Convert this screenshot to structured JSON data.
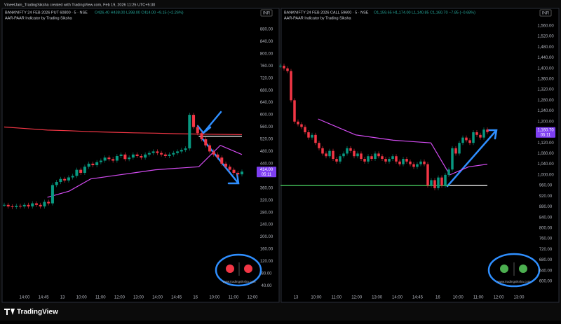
{
  "header": {
    "text": "VineetJain_TradingSiksha created with TradingView.com, Feb 19, 2026 11:25 UTC+5:30"
  },
  "footer": {
    "brand": "TradingView"
  },
  "panels": [
    {
      "title": "BANKNIFTY 24 FEB 2026 PUT 60800 · 5 · NSE",
      "ohlc": "O426.40 H438.00 L398.00 C414.00 +9.15 (+2.26%)",
      "indicator": "AAR-PAAR Indicator by Trading Siksha",
      "currency": "INR",
      "last_price": "414.00",
      "countdown": "05:11",
      "watermark": "www.tradingsiksha.com",
      "ylim": [
        18,
        944
      ],
      "yticks": [
        {
          "value": 40,
          "label": "40.00"
        },
        {
          "value": 80,
          "label": "80.00"
        },
        {
          "value": 120,
          "label": "120.00"
        },
        {
          "value": 160,
          "label": "160.00"
        },
        {
          "value": 200,
          "label": "200.00"
        },
        {
          "value": 240,
          "label": "240.00"
        },
        {
          "value": 280,
          "label": "280.00"
        },
        {
          "value": 320,
          "label": "320.00"
        },
        {
          "value": 360,
          "label": "360.00"
        },
        {
          "value": 400,
          "label": "400.00"
        },
        {
          "value": 440,
          "label": "440.00"
        },
        {
          "value": 480,
          "label": "480.00"
        },
        {
          "value": 520,
          "label": "520.00"
        },
        {
          "value": 560,
          "label": "560.00"
        },
        {
          "value": 600,
          "label": "600.00"
        },
        {
          "value": 640,
          "label": "640.00"
        },
        {
          "value": 680,
          "label": "680.00"
        },
        {
          "value": 720,
          "label": "720.00"
        },
        {
          "value": 760,
          "label": "760.00"
        },
        {
          "value": 800,
          "label": "800.00"
        },
        {
          "value": 840,
          "label": "840.00"
        },
        {
          "value": 880,
          "label": "880.00"
        }
      ],
      "xlabels": [
        "14:00",
        "14:45",
        "13",
        "10:00",
        "11:00",
        "12:00",
        "13:00",
        "14:00",
        "14:45",
        "16",
        "10:00",
        "11:00",
        "12:00"
      ],
      "closes": [
        305,
        300,
        298,
        302,
        300,
        305,
        300,
        310,
        305,
        300,
        315,
        310,
        370,
        380,
        390,
        385,
        395,
        400,
        420,
        410,
        430,
        440,
        435,
        445,
        450,
        460,
        455,
        450,
        465,
        470,
        455,
        460,
        470,
        465,
        460,
        470,
        475,
        480,
        475,
        470,
        465,
        470,
        475,
        480,
        485,
        490,
        600,
        560,
        540,
        520,
        500,
        480,
        470,
        460,
        440,
        430,
        420,
        410,
        405,
        414
      ],
      "lines": [
        {
          "color": "#f23645",
          "values": [
            560,
            555,
            550,
            548,
            545,
            543,
            541,
            540,
            538,
            537,
            536,
            535
          ]
        },
        {
          "color": "#d24bf0",
          "values": [
            null,
            null,
            330,
            350,
            390,
            400,
            410,
            420,
            425,
            430,
            500,
            470
          ]
        },
        {
          "color": "#ffffff",
          "values": [
            null,
            null,
            null,
            null,
            null,
            null,
            null,
            null,
            null,
            530,
            530,
            530
          ]
        }
      ]
    },
    {
      "title": "BANKNIFTY 24 FEB 2026 CALL 59600 · 5 · NSE",
      "ohlc": "O1,159.65 H1,174.00 L1,140.85 C1,160.70 −7.85 (−0.68%)",
      "indicator": "AAR-PAAR Indicator by Trading Siksha",
      "currency": "INR",
      "last_price": "1,160.70",
      "countdown": "05:11",
      "watermark": "www.tradingsiksha.com",
      "ylim": [
        558,
        1620
      ],
      "yticks": [
        {
          "value": 600,
          "label": "600.00"
        },
        {
          "value": 640,
          "label": "640.00"
        },
        {
          "value": 680,
          "label": "680.00"
        },
        {
          "value": 720,
          "label": "720.00"
        },
        {
          "value": 760,
          "label": "760.00"
        },
        {
          "value": 800,
          "label": "800.00"
        },
        {
          "value": 840,
          "label": "840.00"
        },
        {
          "value": 880,
          "label": "880.00"
        },
        {
          "value": 920,
          "label": "920.00"
        },
        {
          "value": 960,
          "label": "960.00"
        },
        {
          "value": 1000,
          "label": "1,000.00"
        },
        {
          "value": 1040,
          "label": "1,040.00"
        },
        {
          "value": 1080,
          "label": "1,080.00"
        },
        {
          "value": 1120,
          "label": "1,120.00"
        },
        {
          "value": 1160,
          "label": "1,160.00"
        },
        {
          "value": 1200,
          "label": "1,200.00"
        },
        {
          "value": 1240,
          "label": "1,240.00"
        },
        {
          "value": 1280,
          "label": "1,280.00"
        },
        {
          "value": 1320,
          "label": "1,320.00"
        },
        {
          "value": 1360,
          "label": "1,360.00"
        },
        {
          "value": 1400,
          "label": "1,400.00"
        },
        {
          "value": 1440,
          "label": "1,440.00"
        },
        {
          "value": 1480,
          "label": "1,480.00"
        },
        {
          "value": 1520,
          "label": "1,520.00"
        },
        {
          "value": 1560,
          "label": "1,560.00"
        }
      ],
      "xlabels": [
        "13",
        "10:00",
        "11:00",
        "12:00",
        "13:00",
        "14:00",
        "14:45",
        "16",
        "10:00",
        "11:00",
        "12:00",
        "13:00"
      ],
      "closes": [
        1410,
        1400,
        1390,
        1280,
        1200,
        1190,
        1180,
        1160,
        1140,
        1150,
        1120,
        1100,
        1080,
        1070,
        1090,
        1060,
        1050,
        1070,
        1080,
        1100,
        1090,
        1070,
        1080,
        1060,
        1050,
        1070,
        1060,
        1080,
        1070,
        1060,
        1050,
        1060,
        1070,
        1050,
        1040,
        1060,
        1050,
        1040,
        1030,
        1040,
        1050,
        1040,
        960,
        980,
        950,
        990,
        960,
        1000,
        1020,
        1100,
        1080,
        1120,
        1140,
        1130,
        1120,
        1160,
        1150,
        1140,
        1170,
        1160.7
      ],
      "lines": [
        {
          "color": "#4cd964",
          "values": [
            960,
            960,
            960,
            960,
            960,
            960,
            960,
            960,
            960,
            960,
            null,
            null
          ]
        },
        {
          "color": "#d24bf0",
          "values": [
            null,
            null,
            1210,
            1180,
            1150,
            1140,
            1130,
            1125,
            1120,
            1000,
            1030,
            1040
          ]
        },
        {
          "color": "#ffffff",
          "values": [
            null,
            null,
            null,
            null,
            null,
            null,
            null,
            null,
            null,
            960,
            960,
            960
          ]
        }
      ]
    }
  ]
}
